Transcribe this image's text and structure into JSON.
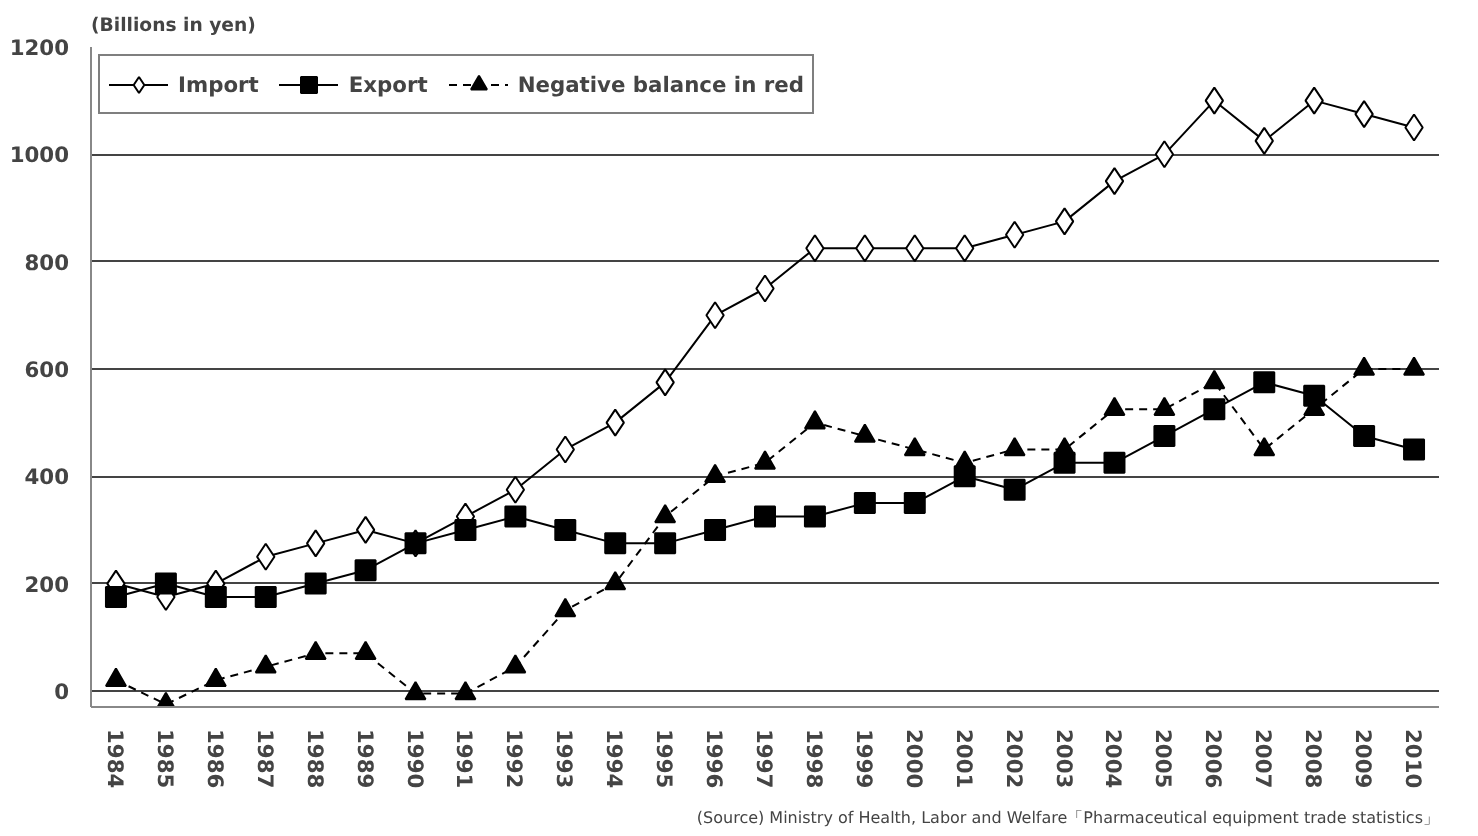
{
  "chart_data": {
    "type": "line",
    "ylabel": "(Billions in yen)",
    "categories": [
      "1984",
      "1985",
      "1986",
      "1987",
      "1988",
      "1989",
      "1990",
      "1991",
      "1992",
      "1993",
      "1994",
      "1995",
      "1996",
      "1997",
      "1998",
      "1999",
      "2000",
      "2001",
      "2002",
      "2003",
      "2004",
      "2005",
      "2006",
      "2007",
      "2008",
      "2009",
      "2010"
    ],
    "series": [
      {
        "name": "Import",
        "color": "#000000",
        "marker": "diamond",
        "line_style": "solid",
        "values": [
          200,
          175,
          200,
          250,
          275,
          300,
          275,
          325,
          375,
          450,
          500,
          575,
          700,
          750,
          825,
          825,
          825,
          825,
          850,
          875,
          950,
          1000,
          1100,
          1025,
          1100,
          1075,
          1050
        ]
      },
      {
        "name": "Export",
        "color": "#000000",
        "marker": "square",
        "line_style": "solid",
        "values": [
          175,
          200,
          175,
          175,
          200,
          225,
          275,
          300,
          325,
          300,
          275,
          275,
          300,
          325,
          325,
          350,
          350,
          400,
          375,
          425,
          425,
          475,
          525,
          575,
          550,
          475,
          450
        ]
      },
      {
        "name": "Negative balance in red",
        "color": "#000000",
        "marker": "triangle",
        "line_style": "dashed",
        "values": [
          20,
          -25,
          20,
          45,
          70,
          70,
          -5,
          -5,
          45,
          150,
          200,
          325,
          400,
          425,
          500,
          475,
          450,
          425,
          450,
          450,
          525,
          525,
          575,
          450,
          525,
          600,
          600
        ]
      }
    ],
    "ylim": [
      -30,
      1200
    ],
    "yticks": [
      0,
      200,
      400,
      600,
      800,
      1000,
      1200
    ],
    "grid": "y",
    "legend": "top",
    "annotations": [
      "(Source) Ministry of Health, Labor and Welfare「Pharmaceutical equipment trade statistics」"
    ]
  }
}
